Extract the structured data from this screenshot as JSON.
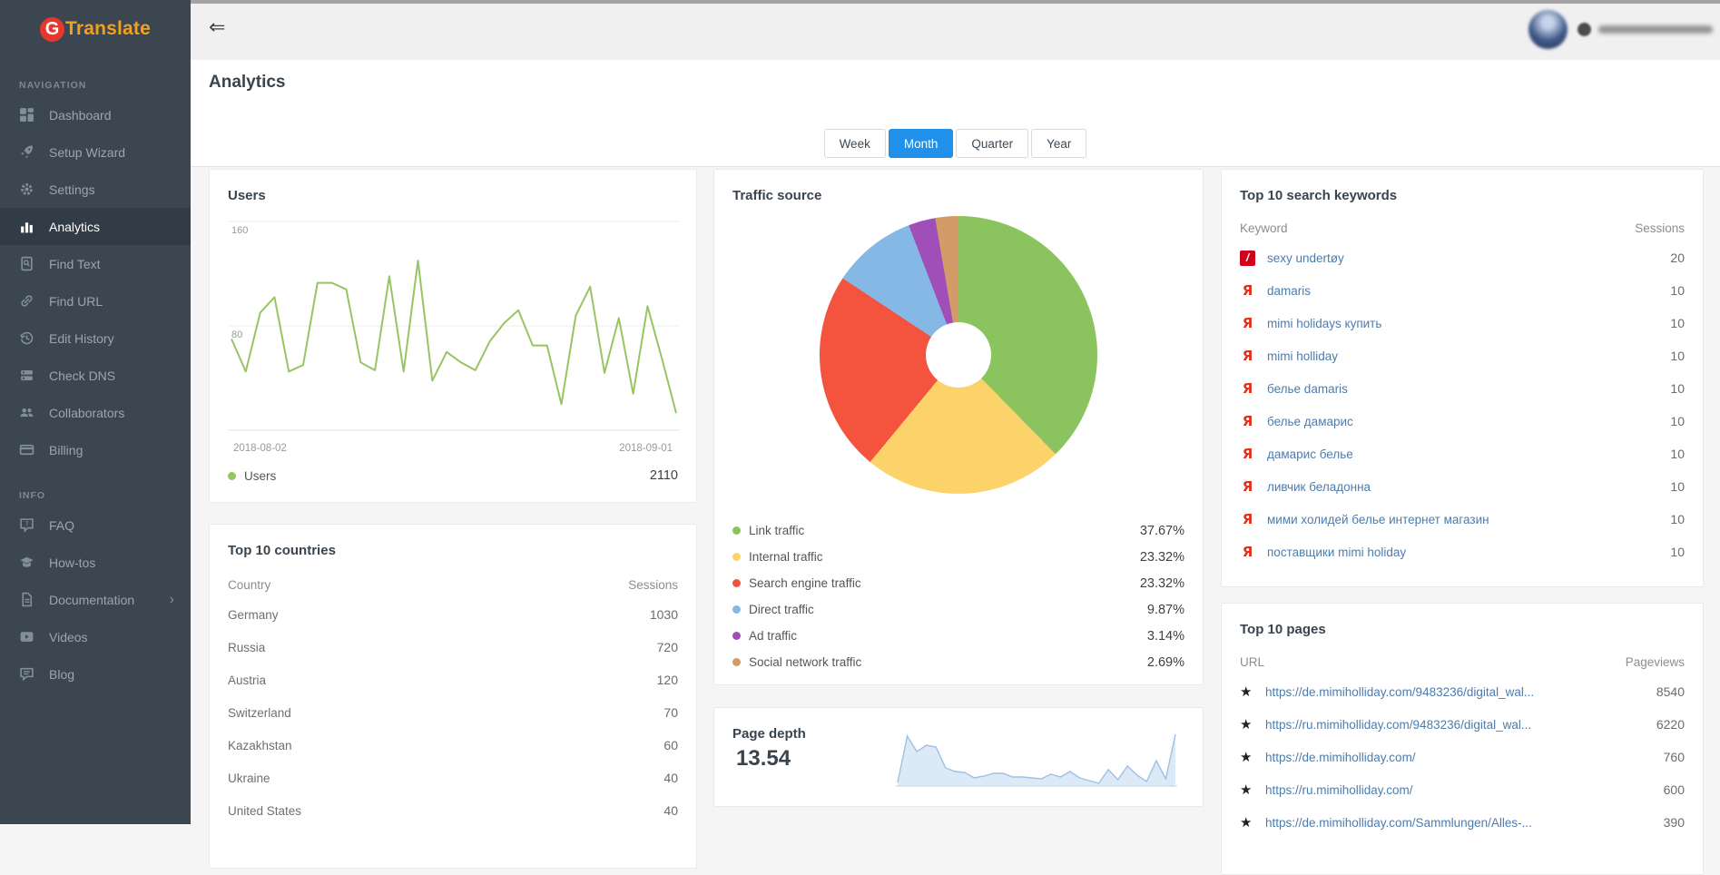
{
  "sidebar": {
    "logo": {
      "g": "G",
      "name": "Translate"
    },
    "sections": [
      {
        "label": "NAVIGATION",
        "items": [
          {
            "label": "Dashboard"
          },
          {
            "label": "Setup Wizard"
          },
          {
            "label": "Settings"
          },
          {
            "label": "Analytics",
            "active": true
          },
          {
            "label": "Find Text"
          },
          {
            "label": "Find URL"
          },
          {
            "label": "Edit History"
          },
          {
            "label": "Check DNS"
          },
          {
            "label": "Collaborators"
          },
          {
            "label": "Billing"
          }
        ]
      },
      {
        "label": "INFO",
        "items": [
          {
            "label": "FAQ"
          },
          {
            "label": "How-tos"
          },
          {
            "label": "Documentation",
            "has_submenu": true
          },
          {
            "label": "Videos"
          },
          {
            "label": "Blog"
          }
        ]
      }
    ]
  },
  "topbar": {
    "avatar": "blurred",
    "email": "blurred"
  },
  "page": {
    "title": "Analytics"
  },
  "tabs": {
    "options": [
      "Week",
      "Month",
      "Quarter",
      "Year"
    ],
    "active": "Month"
  },
  "icons": {
    "collapse": "⇐",
    "chevron_right": "›",
    "star": "★",
    "yandex_favicon": "Я",
    "slash_favicon": "/"
  },
  "chart_data": [
    {
      "type": "line",
      "name": "users-over-time",
      "title": "Users",
      "series": [
        {
          "name": "Users",
          "values": [
            70,
            45,
            90,
            102,
            45,
            50,
            113,
            113,
            108,
            52,
            46,
            118,
            45,
            130,
            38,
            60,
            52,
            46,
            68,
            82,
            92,
            65,
            65,
            20,
            88,
            110,
            44,
            86,
            28,
            95,
            55,
            13
          ]
        }
      ],
      "x_labels": [
        "2018-08-02",
        "2018-09-01"
      ],
      "y_ticks": [
        160,
        80
      ],
      "ylim": [
        0,
        167
      ],
      "legend_label": "Users",
      "total": "2110",
      "color": "#97c562",
      "grid": "horizontal"
    },
    {
      "type": "pie",
      "name": "traffic-source",
      "title": "Traffic source",
      "donut": true,
      "legend_position": "bottom",
      "slices": [
        {
          "label": "Link traffic",
          "value": 37.67,
          "display": "37.67%",
          "color": "#8bc45e"
        },
        {
          "label": "Internal traffic",
          "value": 23.32,
          "display": "23.32%",
          "color": "#fbd36a"
        },
        {
          "label": "Search engine traffic",
          "value": 23.32,
          "display": "23.32%",
          "color": "#f4533e"
        },
        {
          "label": "Direct traffic",
          "value": 9.87,
          "display": "9.87%",
          "color": "#85b8e4"
        },
        {
          "label": "Ad traffic",
          "value": 3.14,
          "display": "3.14%",
          "color": "#a14fb8"
        },
        {
          "label": "Social network traffic",
          "value": 2.69,
          "display": "2.69%",
          "color": "#d19c67"
        }
      ]
    },
    {
      "type": "area",
      "name": "page-depth",
      "title": "Page depth",
      "value": "13.54",
      "values": [
        4,
        55,
        38,
        45,
        43,
        20,
        16,
        15,
        9,
        11,
        14,
        14,
        10,
        10,
        9,
        8,
        13,
        10,
        16,
        9,
        6,
        3,
        18,
        7,
        22,
        12,
        5,
        28,
        8,
        57
      ],
      "fill": "#dce9f7",
      "line": "#9fc0e2"
    }
  ],
  "panels": {
    "countries": {
      "title": "Top 10 countries",
      "col_name": "Country",
      "col_value": "Sessions",
      "rows": [
        {
          "name": "Germany",
          "sessions": "1030"
        },
        {
          "name": "Russia",
          "sessions": "720"
        },
        {
          "name": "Austria",
          "sessions": "120"
        },
        {
          "name": "Switzerland",
          "sessions": "70"
        },
        {
          "name": "Kazakhstan",
          "sessions": "60"
        },
        {
          "name": "Ukraine",
          "sessions": "40"
        },
        {
          "name": "United States",
          "sessions": "40"
        }
      ]
    },
    "keywords": {
      "title": "Top 10 search keywords",
      "col_name": "Keyword",
      "col_value": "Sessions",
      "rows": [
        {
          "label": "sexy undertøy",
          "sessions": "20",
          "icon": "slash-favicon"
        },
        {
          "label": "damaris",
          "sessions": "10",
          "icon": "yandex-favicon"
        },
        {
          "label": "mimi holidays купить",
          "sessions": "10",
          "icon": "yandex-favicon"
        },
        {
          "label": "mimi holliday",
          "sessions": "10",
          "icon": "yandex-favicon"
        },
        {
          "label": "белье damaris",
          "sessions": "10",
          "icon": "yandex-favicon"
        },
        {
          "label": "белье дамарис",
          "sessions": "10",
          "icon": "yandex-favicon"
        },
        {
          "label": "дамарис белье",
          "sessions": "10",
          "icon": "yandex-favicon"
        },
        {
          "label": "ливчик беладонна",
          "sessions": "10",
          "icon": "yandex-favicon"
        },
        {
          "label": "мими холидей белье интернет магазин",
          "sessions": "10",
          "icon": "yandex-favicon"
        },
        {
          "label": "поставщики mimi holiday",
          "sessions": "10",
          "icon": "yandex-favicon"
        }
      ]
    },
    "pages": {
      "title": "Top 10 pages",
      "col_name": "URL",
      "col_value": "Pageviews",
      "rows": [
        {
          "url": "https://de.mimiholliday.com/9483236/digital_wal...",
          "pageviews": "8540"
        },
        {
          "url": "https://ru.mimiholliday.com/9483236/digital_wal...",
          "pageviews": "6220"
        },
        {
          "url": "https://de.mimiholliday.com/",
          "pageviews": "760"
        },
        {
          "url": "https://ru.mimiholliday.com/",
          "pageviews": "600"
        },
        {
          "url": "https://de.mimiholliday.com/Sammlungen/Alles-...",
          "pageviews": "390"
        }
      ]
    }
  }
}
